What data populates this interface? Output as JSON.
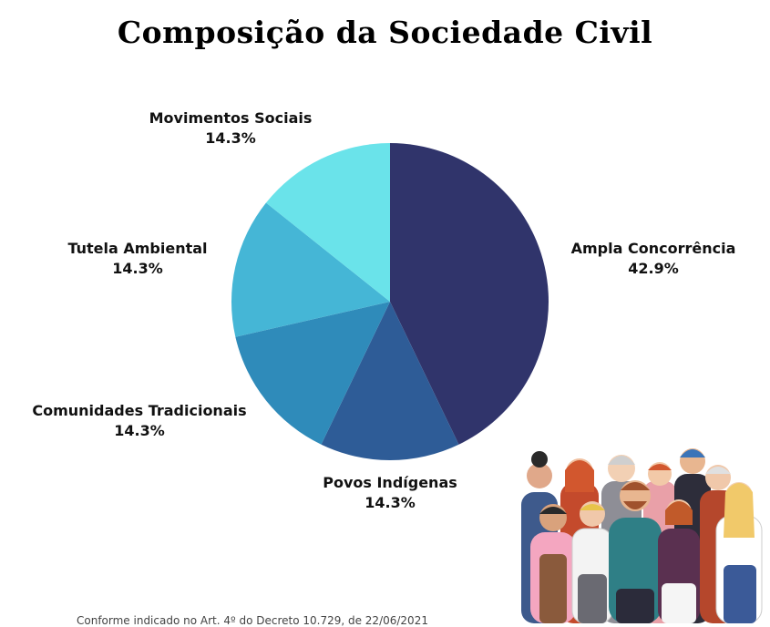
{
  "title": "Composição da Sociedade Civil",
  "chart_data": {
    "type": "pie",
    "title": "Composição da Sociedade Civil",
    "categories": [
      "Ampla Concorrência",
      "Povos Indígenas",
      "Comunidades Tradicionais",
      "Tutela Ambiental",
      "Movimentos Sociais"
    ],
    "values": [
      42.9,
      14.3,
      14.3,
      14.3,
      14.3
    ],
    "value_labels": [
      "42.9%",
      "14.3%",
      "14.3%",
      "14.3%",
      "14.3%"
    ],
    "colors": [
      "#30346b",
      "#2e5c97",
      "#2f8bba",
      "#45b6d6",
      "#6ae3ea"
    ],
    "start": "top",
    "direction": "clockwise"
  },
  "footnote": "Conforme indicado no Art. 4º do Decreto 10.729, de 22/06/2021",
  "illustration": {
    "icon": "diverse-people-group-illustration"
  }
}
